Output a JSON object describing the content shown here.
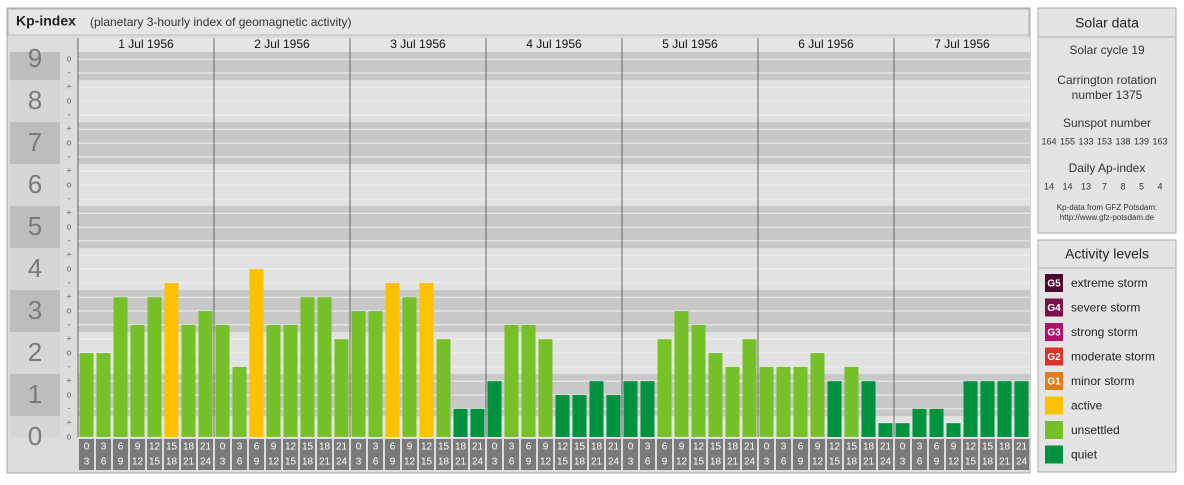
{
  "chart_data": {
    "type": "bar",
    "title": "Kp-index",
    "subtitle": "(planetary 3-hourly index of geomagnetic activity)",
    "days": [
      "1 Jul 1956",
      "2 Jul 1956",
      "3 Jul 1956",
      "4 Jul 1956",
      "5 Jul 1956",
      "6 Jul 1956",
      "7 Jul 1956"
    ],
    "hour_labels": {
      "start": [
        "0",
        "3",
        "6",
        "9",
        "12",
        "15",
        "18",
        "21"
      ],
      "end": [
        "3",
        "6",
        "9",
        "12",
        "15",
        "18",
        "21",
        "24"
      ]
    },
    "values": [
      2,
      2,
      3.33,
      2.67,
      3.33,
      3.67,
      2.67,
      3,
      2.67,
      1.67,
      4,
      2.67,
      2.67,
      3.33,
      3.33,
      2.33,
      3,
      3,
      3.67,
      3.33,
      3.67,
      2.33,
      0.67,
      0.67,
      1.33,
      2.67,
      2.67,
      2.33,
      1,
      1,
      1.33,
      1,
      1.33,
      1.33,
      2.33,
      3,
      2.67,
      2,
      1.67,
      2.33,
      1.67,
      1.67,
      1.67,
      2,
      1.33,
      1.67,
      1.33,
      0.33,
      0.33,
      0.67,
      0.67,
      0.33,
      1.33,
      1.33,
      1.33,
      1.33
    ],
    "colors": [
      "#76c12a",
      "#76c12a",
      "#76c12a",
      "#76c12a",
      "#76c12a",
      "#fcc200",
      "#76c12a",
      "#76c12a",
      "#76c12a",
      "#76c12a",
      "#fcc200",
      "#76c12a",
      "#76c12a",
      "#76c12a",
      "#76c12a",
      "#76c12a",
      "#76c12a",
      "#76c12a",
      "#fcc200",
      "#76c12a",
      "#fcc200",
      "#76c12a",
      "#00923f",
      "#00923f",
      "#00923f",
      "#76c12a",
      "#76c12a",
      "#76c12a",
      "#00923f",
      "#00923f",
      "#00923f",
      "#00923f",
      "#00923f",
      "#00923f",
      "#76c12a",
      "#76c12a",
      "#76c12a",
      "#76c12a",
      "#76c12a",
      "#76c12a",
      "#76c12a",
      "#76c12a",
      "#76c12a",
      "#76c12a",
      "#00923f",
      "#76c12a",
      "#00923f",
      "#00923f",
      "#00923f",
      "#00923f",
      "#00923f",
      "#00923f",
      "#00923f",
      "#00923f",
      "#00923f",
      "#00923f"
    ],
    "ylim": [
      0,
      9.17
    ],
    "yticks": [
      0,
      1,
      2,
      3,
      4,
      5,
      6,
      7,
      8,
      9
    ],
    "minor_ticks": [
      {
        "value": 0,
        "label": "o"
      },
      {
        "value": 0.33,
        "label": "+"
      },
      {
        "value": 0.67,
        "label": "-"
      },
      {
        "value": 1,
        "label": "o"
      },
      {
        "value": 1.33,
        "label": "+"
      },
      {
        "value": 1.67,
        "label": "-"
      },
      {
        "value": 2,
        "label": "o"
      },
      {
        "value": 2.33,
        "label": "+"
      },
      {
        "value": 2.67,
        "label": "-"
      },
      {
        "value": 3,
        "label": "o"
      },
      {
        "value": 3.33,
        "label": "+"
      },
      {
        "value": 3.67,
        "label": "-"
      },
      {
        "value": 4,
        "label": "o"
      },
      {
        "value": 4.33,
        "label": "+"
      },
      {
        "value": 4.67,
        "label": "-"
      },
      {
        "value": 5,
        "label": "o"
      },
      {
        "value": 5.33,
        "label": "+"
      },
      {
        "value": 5.67,
        "label": "-"
      },
      {
        "value": 6,
        "label": "o"
      },
      {
        "value": 6.33,
        "label": "+"
      },
      {
        "value": 6.67,
        "label": "-"
      },
      {
        "value": 7,
        "label": "o"
      },
      {
        "value": 7.33,
        "label": "+"
      },
      {
        "value": 7.67,
        "label": "-"
      },
      {
        "value": 8,
        "label": "o"
      },
      {
        "value": 8.33,
        "label": "+"
      },
      {
        "value": 8.67,
        "label": "-"
      },
      {
        "value": 9,
        "label": "o"
      }
    ],
    "grid": true
  },
  "solar_data": {
    "title": "Solar data",
    "cycle": "Solar cycle 19",
    "rotation": [
      "Carrington rotation",
      "number 1375"
    ],
    "sunspot_title": "Sunspot number",
    "sunspots": [
      164,
      155,
      133,
      153,
      138,
      139,
      163
    ],
    "ap_title": "Daily Ap-index",
    "ap": [
      14,
      14,
      13,
      7,
      8,
      5,
      4
    ],
    "source": [
      "Kp-data from GFZ Potsdam:",
      "http://www.gfz-potsdam.de"
    ]
  },
  "activity_levels": {
    "title": "Activity levels",
    "items": [
      {
        "badge": "G5",
        "name": "extreme storm",
        "color": "#4a0a2a"
      },
      {
        "badge": "G4",
        "name": "severe storm",
        "color": "#7a1048"
      },
      {
        "badge": "G3",
        "name": "strong storm",
        "color": "#b0126a"
      },
      {
        "badge": "G2",
        "name": "moderate storm",
        "color": "#d8342a"
      },
      {
        "badge": "G1",
        "name": "minor storm",
        "color": "#e07b1e"
      },
      {
        "name": "active",
        "color": "#fcc200"
      },
      {
        "name": "unsettled",
        "color": "#76c12a"
      },
      {
        "name": "quiet",
        "color": "#00923f"
      }
    ]
  }
}
